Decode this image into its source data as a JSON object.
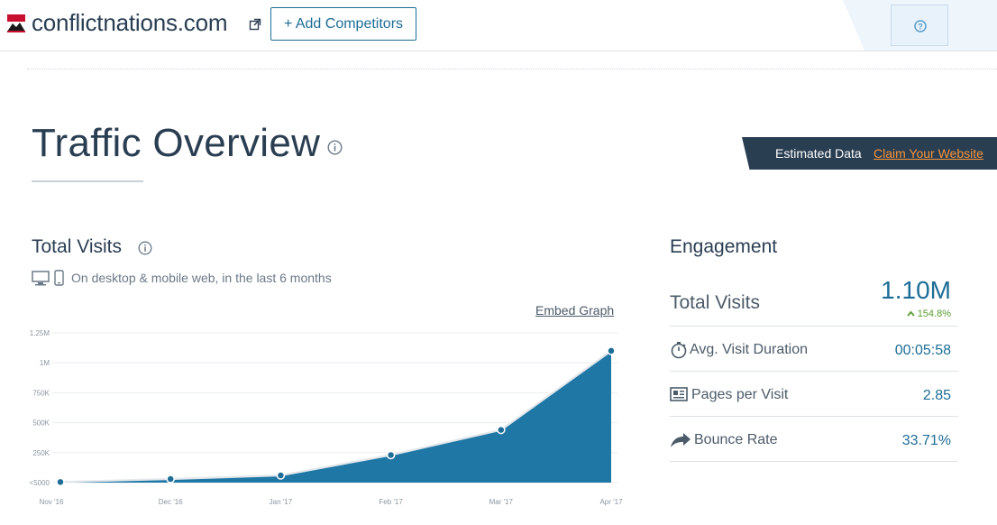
{
  "header": {
    "site_name": "conflictnations.com",
    "add_competitors_label": "+ Add Competitors"
  },
  "title": {
    "text": "Traffic Overview",
    "estimated_label": "Estimated Data",
    "claim_label": "Claim Your Website"
  },
  "total_visits": {
    "heading": "Total Visits",
    "subtitle": "On desktop & mobile web, in the last 6 months",
    "embed_label": "Embed Graph"
  },
  "chart_data": {
    "type": "area",
    "categories": [
      "Nov '16",
      "Dec '16",
      "Jan '17",
      "Feb '17",
      "Mar '17",
      "Apr '17"
    ],
    "values": [
      5000,
      30000,
      60000,
      230000,
      440000,
      1100000
    ],
    "y_ticks": [
      "<5000",
      "250K",
      "500K",
      "750K",
      "1M",
      "1.25M"
    ],
    "ylim": [
      0,
      1250000
    ],
    "grid": true,
    "colors": {
      "fill": "#1f77a6",
      "line": "#e3e8ec",
      "point": "#1d6d96"
    }
  },
  "engagement": {
    "heading": "Engagement",
    "total_label": "Total Visits",
    "total_value": "1.10M",
    "change": "154.8%",
    "rows": [
      {
        "icon": "stopwatch-icon",
        "label": "Avg. Visit Duration",
        "value": "00:05:58"
      },
      {
        "icon": "pages-icon",
        "label": "Pages per Visit",
        "value": "2.85"
      },
      {
        "icon": "bounce-arrow-icon",
        "label": "Bounce Rate",
        "value": "33.71%"
      }
    ]
  },
  "colors": {
    "accent": "#1d6d96",
    "claim": "#f5943a",
    "positive": "#5a9e2f",
    "banner": "#2a3e52"
  }
}
